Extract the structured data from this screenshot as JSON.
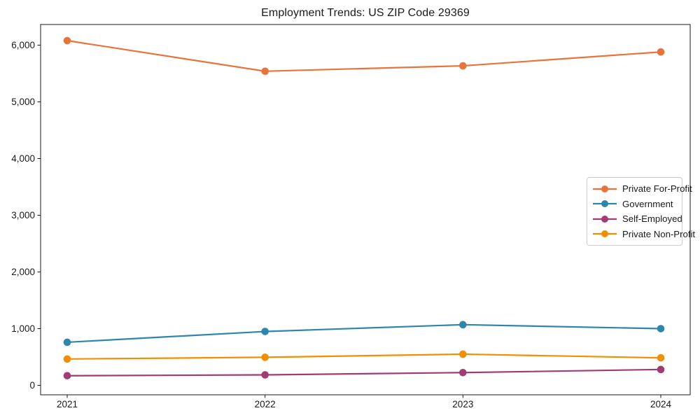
{
  "chart_data": {
    "type": "line",
    "title": "Employment Trends: US ZIP Code 29369",
    "x": [
      "2021",
      "2022",
      "2023",
      "2024"
    ],
    "series": [
      {
        "name": "Private For-Profit",
        "color": "#e8743b",
        "values": [
          6080,
          5540,
          5635,
          5880
        ]
      },
      {
        "name": "Government",
        "color": "#2e86ab",
        "values": [
          760,
          950,
          1070,
          1000
        ]
      },
      {
        "name": "Self-Employed",
        "color": "#a23b72",
        "values": [
          170,
          185,
          225,
          280
        ]
      },
      {
        "name": "Private Non-Profit",
        "color": "#f18f01",
        "values": [
          465,
          495,
          550,
          485
        ]
      }
    ],
    "yticks": [
      0,
      1000,
      2000,
      3000,
      4000,
      5000,
      6000
    ],
    "ytick_labels": [
      "0",
      "1,000",
      "2,000",
      "3,000",
      "4,000",
      "5,000",
      "6,000"
    ],
    "ylim": [
      -170,
      6360
    ],
    "xlabel": "",
    "ylabel": "",
    "grid": false,
    "legend_position": "right-center",
    "spine_color": "#1a1a1a",
    "marker": "circle"
  }
}
